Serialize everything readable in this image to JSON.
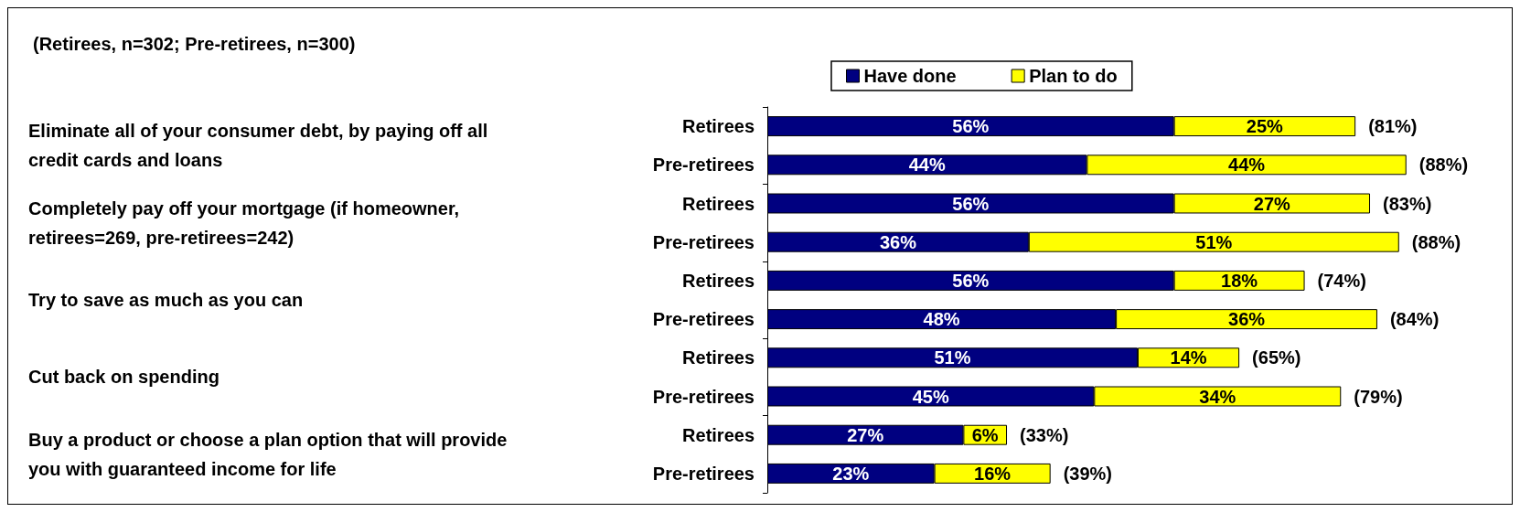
{
  "chart_data": {
    "type": "bar",
    "orientation": "horizontal",
    "stacked": true,
    "subtitle": "(Retirees, n=302; Pre-retirees, n=300)",
    "categories": [
      "Retirees",
      "Pre-retirees",
      "Retirees",
      "Pre-retirees",
      "Retirees",
      "Pre-retirees",
      "Retirees",
      "Pre-retirees",
      "Retirees",
      "Pre-retirees"
    ],
    "annotations": [
      "Eliminate all of your consumer debt, by paying off all credit cards and loans",
      "Completely pay off your mortgage (if homeowner, retirees=269, pre-retirees=242)",
      "Try to save as much as you can",
      "Cut back on spending",
      "Buy a product or choose a plan option that will provide you with guaranteed income for life"
    ],
    "series": [
      {
        "name": "Have done",
        "color": "#000080",
        "values": [
          56,
          44,
          56,
          36,
          56,
          48,
          51,
          45,
          27,
          23
        ],
        "value_labels": [
          "56%",
          "44%",
          "56%",
          "36%",
          "56%",
          "48%",
          "51%",
          "45%",
          "27%",
          "23%"
        ]
      },
      {
        "name": "Plan to do",
        "color": "#ffff00",
        "values": [
          25,
          44,
          27,
          51,
          18,
          36,
          14,
          34,
          6,
          16
        ],
        "value_labels": [
          "25%",
          "44%",
          "27%",
          "51%",
          "18%",
          "36%",
          "14%",
          "34%",
          "6%",
          "16%"
        ]
      }
    ],
    "totals": [
      "(81%)",
      "(88%)",
      "(83%)",
      "(88%)",
      "(74%)",
      "(84%)",
      "(65%)",
      "(79%)",
      "(33%)",
      "(39%)"
    ],
    "tick_labels": "y",
    "legend": "top"
  }
}
